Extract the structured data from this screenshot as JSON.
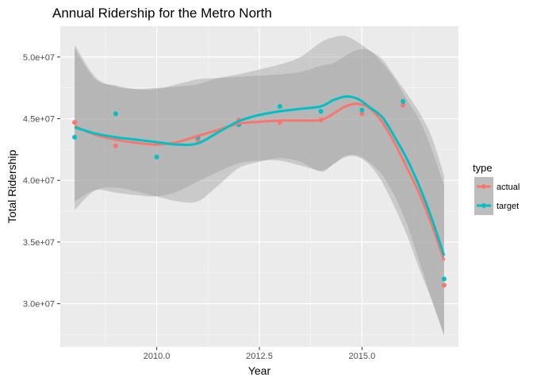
{
  "chart_data": {
    "type": "scatter",
    "title": "Annual Ridership for the Metro North",
    "xlabel": "Year",
    "ylabel": "Total Ridership",
    "xlim": [
      2007.65,
      2017.35
    ],
    "ylim": [
      26500000,
      52500000
    ],
    "x_ticks": [
      2010.0,
      2012.5,
      2015.0
    ],
    "x_tick_labels": [
      "2010.0",
      "2012.5",
      "2015.0"
    ],
    "y_ticks": [
      30000000,
      35000000,
      40000000,
      45000000,
      50000000
    ],
    "y_tick_labels": [
      "3.0e+07",
      "3.5e+07",
      "4.0e+07",
      "4.5e+07",
      "5.0e+07"
    ],
    "grid": true,
    "legend": {
      "title": "type",
      "placement": "right"
    },
    "smoothing": "loess with confidence band",
    "series": [
      {
        "name": "actual",
        "color": "#F8766D",
        "x": [
          2008,
          2009,
          2010,
          2011,
          2012,
          2013,
          2014,
          2015,
          2016,
          2017
        ],
        "values": [
          44700000,
          42800000,
          43000000,
          43300000,
          44900000,
          44700000,
          44900000,
          45400000,
          46100000,
          31500000
        ],
        "smooth": {
          "x": [
            2008,
            2008.5,
            2009,
            2009.5,
            2010,
            2010.5,
            2011,
            2011.5,
            2012,
            2012.5,
            2013,
            2013.5,
            2014,
            2014.3,
            2014.6,
            2014.9,
            2015.2,
            2015.5,
            2015.8,
            2016.1,
            2016.4,
            2016.7,
            2017
          ],
          "y": [
            44400000,
            43700000,
            43300000,
            43050000,
            42900000,
            43100000,
            43600000,
            44100000,
            44600000,
            44750000,
            44850000,
            44850000,
            44900000,
            45400000,
            46000000,
            46200000,
            45800000,
            44700000,
            43000000,
            41000000,
            38900000,
            36400000,
            33500000
          ],
          "lower": [
            38300000,
            39200000,
            39000000,
            38800000,
            38700000,
            39100000,
            39900000,
            40700000,
            41400000,
            41600000,
            41600000,
            41200000,
            40800000,
            41300000,
            41900000,
            41900000,
            41200000,
            39800000,
            37800000,
            35500000,
            32800000,
            30300000,
            27500000
          ],
          "upper": [
            50700000,
            48200000,
            47700000,
            47400000,
            47400000,
            47800000,
            48200000,
            48300000,
            48400000,
            48500000,
            48600000,
            48800000,
            49300000,
            49500000,
            50100000,
            50600000,
            50500000,
            49500000,
            48200000,
            46500000,
            44900000,
            42500000,
            39600000
          ]
        }
      },
      {
        "name": "target",
        "color": "#00BFC4",
        "x": [
          2008,
          2009,
          2010,
          2011,
          2012,
          2013,
          2014,
          2015,
          2016,
          2017
        ],
        "values": [
          43500000,
          45400000,
          41900000,
          43500000,
          44500000,
          46000000,
          45600000,
          45700000,
          46400000,
          32000000
        ],
        "smooth": {
          "x": [
            2008,
            2008.5,
            2009,
            2009.5,
            2010,
            2010.5,
            2011,
            2011.5,
            2012,
            2012.5,
            2013,
            2013.5,
            2014,
            2014.3,
            2014.6,
            2014.9,
            2015.2,
            2015.5,
            2015.8,
            2016.1,
            2016.4,
            2016.7,
            2017
          ],
          "y": [
            44300000,
            43800000,
            43500000,
            43300000,
            43100000,
            42900000,
            43000000,
            43900000,
            44800000,
            45300000,
            45600000,
            45800000,
            46000000,
            46500000,
            46800000,
            46600000,
            45900000,
            45100000,
            43500000,
            41700000,
            39500000,
            36900000,
            33900000
          ],
          "lower": [
            37600000,
            39200000,
            39400000,
            39100000,
            38700000,
            38300000,
            38300000,
            39600000,
            41000000,
            41500000,
            41800000,
            41500000,
            40700000,
            41300000,
            42000000,
            42000000,
            41400000,
            40400000,
            38700000,
            36400000,
            33400000,
            30300000,
            27400000
          ],
          "upper": [
            51000000,
            48400000,
            47600000,
            47400000,
            47500000,
            47600000,
            47800000,
            48300000,
            48600000,
            49000000,
            49400000,
            50000000,
            51200000,
            51600000,
            51700000,
            51200000,
            50500000,
            49800000,
            48400000,
            47000000,
            45500000,
            43500000,
            40400000
          ]
        }
      }
    ]
  }
}
